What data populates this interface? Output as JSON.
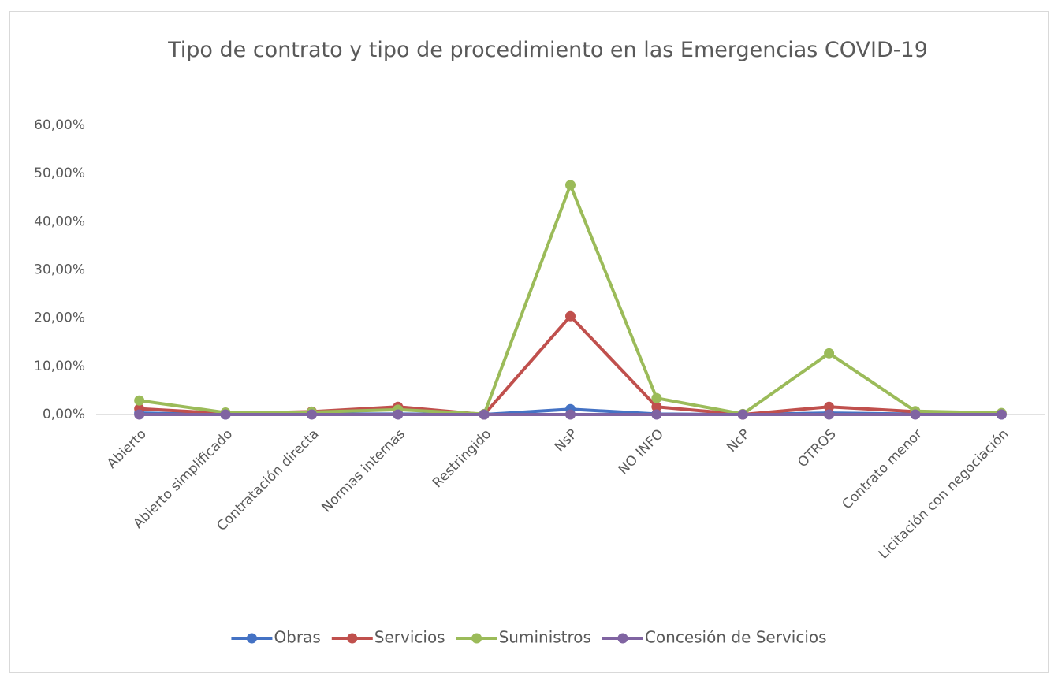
{
  "chart_data": {
    "type": "line",
    "title": "Tipo de contrato y tipo de procedimiento en las Emergencias COVID-19",
    "categories": [
      "Abierto",
      "Abierto simplificado",
      "Contratación directa",
      "Normas internas",
      "Restringido",
      "NsP",
      "NO INFO",
      "NcP",
      "OTROS",
      "Contrato menor",
      "Licitación con negociación"
    ],
    "series": [
      {
        "name": "Obras",
        "color": "#4472c4",
        "values": [
          0.3,
          0,
          0.1,
          0.1,
          0,
          1.1,
          0.1,
          0,
          0.3,
          0.1,
          0
        ]
      },
      {
        "name": "Servicios",
        "color": "#c0504d",
        "values": [
          1.2,
          0.2,
          0.6,
          1.6,
          0,
          20.4,
          1.6,
          0,
          1.6,
          0.6,
          0.1
        ]
      },
      {
        "name": "Suministros",
        "color": "#9bbb59",
        "values": [
          2.9,
          0.4,
          0.5,
          1.0,
          0.1,
          47.6,
          3.4,
          0.1,
          12.7,
          0.7,
          0.3
        ]
      },
      {
        "name": "Concesión de Servicios",
        "color": "#8064a2",
        "values": [
          0,
          0,
          0,
          0,
          0,
          0,
          0,
          0,
          0,
          0,
          0
        ]
      }
    ],
    "ylim": [
      0,
      60
    ],
    "yticks": [
      {
        "value": 0,
        "label": "0,00%"
      },
      {
        "value": 10,
        "label": "10,00%"
      },
      {
        "value": 20,
        "label": "20,00%"
      },
      {
        "value": 30,
        "label": "30,00%"
      },
      {
        "value": 40,
        "label": "40,00%"
      },
      {
        "value": 50,
        "label": "50,00%"
      },
      {
        "value": 60,
        "label": "60,00%"
      }
    ],
    "grid": false
  }
}
